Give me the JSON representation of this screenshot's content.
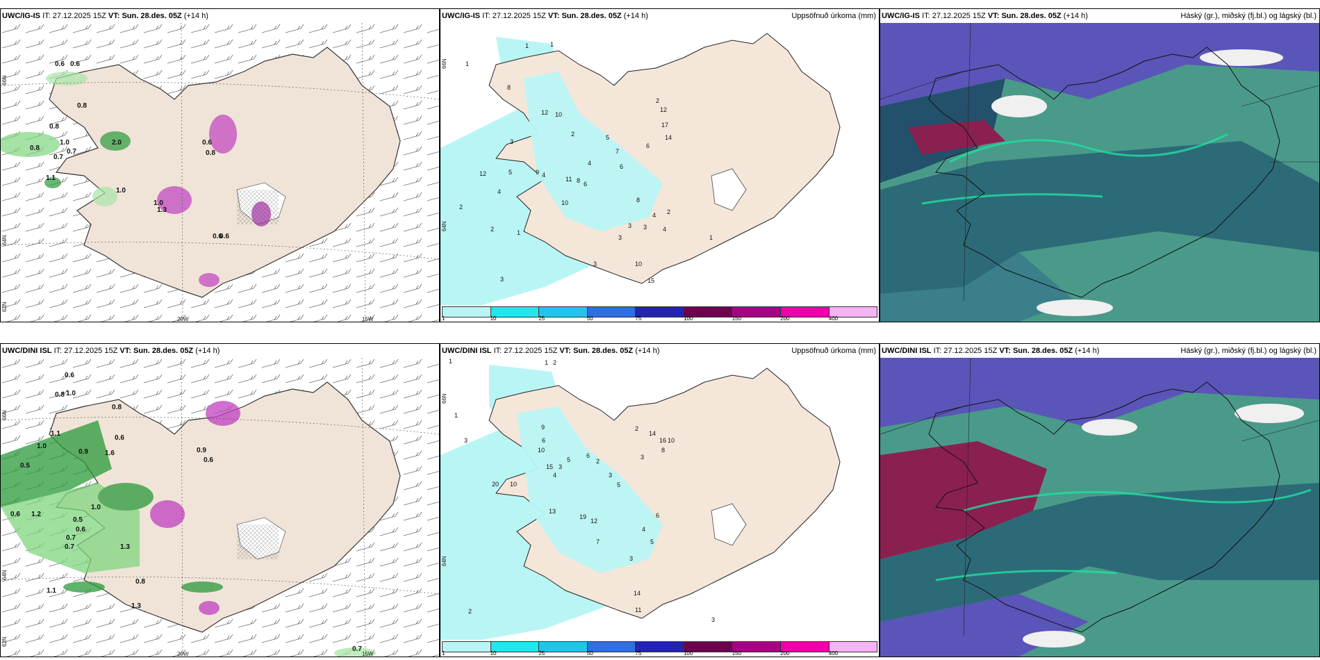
{
  "rows": [
    {
      "model": "UWC/IG-IS",
      "it_label": "IT:",
      "it_value": "27.12.2025 15Z",
      "vt_label": "VT:",
      "vt_value": "Sun. 28.des. 05Z",
      "lead": "(+14 h)"
    },
    {
      "model": "UWC/DINI ISL",
      "it_label": "IT:",
      "it_value": "27.12.2025 15Z",
      "vt_label": "VT:",
      "vt_value": "Sun. 28.des. 05Z",
      "lead": "(+14 h)"
    }
  ],
  "precip_title": "Uppsöfnuð úrkoma (mm)",
  "cloud_title": "Háský (gr.), miðský (fj.bl.) og lágský (bl.)",
  "colorbar": {
    "labels": [
      "1",
      "10",
      "25",
      "50",
      "75",
      "100",
      "150",
      "200",
      "400"
    ],
    "colors": [
      "#b9f5f5",
      "#22e6ee",
      "#22c4ee",
      "#2e6ee6",
      "#2323b4",
      "#6e0050",
      "#aa0085",
      "#ee00aa",
      "#f5b4f5"
    ]
  },
  "axis_labels": {
    "top": {
      "lon1": "20W",
      "lon2": "15W",
      "lat1": "66N",
      "lat2": "64N",
      "lat3": "62N"
    },
    "bottom": {
      "lon1": "20W",
      "lon2": "15W",
      "lat1": "66N",
      "lat2": "64N",
      "lat3": "62N"
    }
  },
  "left_numbers_top": [
    "0.6",
    "0.8",
    "0.8",
    "1.0",
    "0.7",
    "0.8",
    "0.7",
    "2.0",
    "1.0",
    "0.6",
    "0.8",
    "1.0",
    "0.6",
    "1.3",
    "0.6",
    "0.6",
    "1.1"
  ],
  "left_numbers_bottom": [
    "0.6",
    "0.8",
    "1.0",
    "0.8",
    "1.1",
    "1.0",
    "0.6",
    "0.5",
    "0.9",
    "1.6",
    "0.6",
    "1.2",
    "0.5",
    "0.6",
    "0.7",
    "1.0",
    "0.9",
    "0.6",
    "1.3",
    "0.7",
    "1.1",
    "1.3",
    "0.8",
    "0.7"
  ],
  "precip_numbers_top": [
    "1",
    "1",
    "1",
    "8",
    "12",
    "10",
    "2",
    "5",
    "4",
    "6",
    "4",
    "8",
    "9",
    "6",
    "11",
    "10",
    "5",
    "3",
    "4",
    "2",
    "2",
    "3",
    "1",
    "3",
    "3",
    "4",
    "2",
    "12",
    "17",
    "14",
    "6",
    "2",
    "3",
    "4",
    "1",
    "3",
    "8",
    "10",
    "15",
    "7",
    "12"
  ],
  "precip_numbers_bottom": [
    "1",
    "1",
    "2",
    "1",
    "3",
    "9",
    "6",
    "10",
    "15",
    "5",
    "3",
    "4",
    "6",
    "2",
    "20",
    "10",
    "19",
    "12",
    "3",
    "5",
    "2",
    "14",
    "16",
    "10",
    "8",
    "3",
    "4",
    "5",
    "6",
    "7",
    "13",
    "3",
    "11",
    "14",
    "2",
    "3"
  ]
}
